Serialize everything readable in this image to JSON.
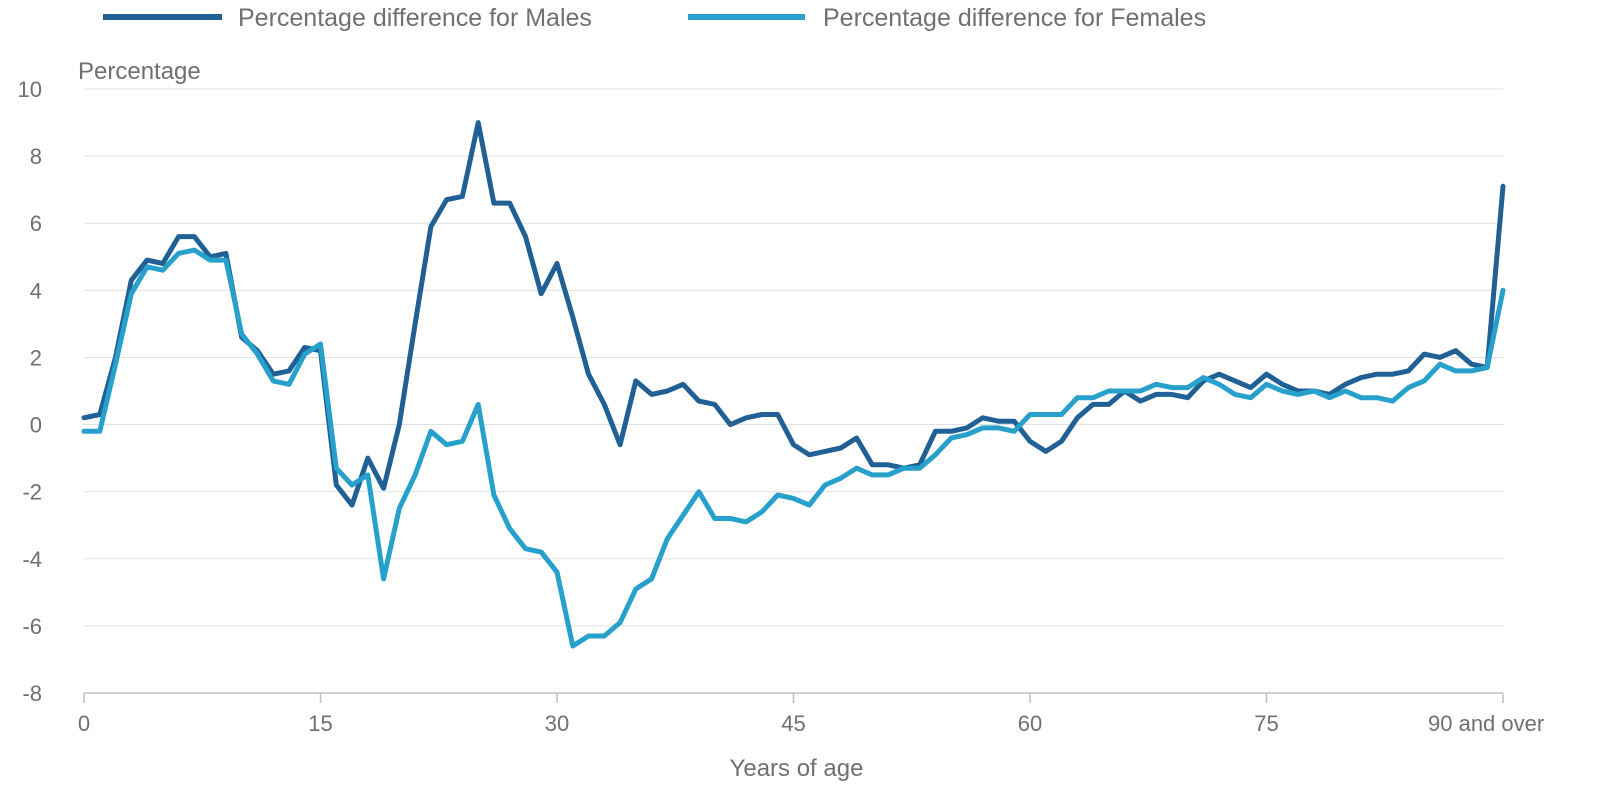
{
  "chart_data": {
    "type": "line",
    "title": "",
    "xlabel": "Years of age",
    "ylabel": "Percentage",
    "ylim": [
      -8,
      10
    ],
    "yticks": [
      10,
      8,
      6,
      4,
      2,
      0,
      -2,
      -4,
      -6,
      -8
    ],
    "xlim": [
      0,
      90
    ],
    "xticks": [
      {
        "value": 0,
        "label": "0"
      },
      {
        "value": 15,
        "label": "15"
      },
      {
        "value": 30,
        "label": "30"
      },
      {
        "value": 45,
        "label": "45"
      },
      {
        "value": 60,
        "label": "60"
      },
      {
        "value": 75,
        "label": "75"
      },
      {
        "value": 90,
        "label": "90 and over"
      }
    ],
    "grid": true,
    "legend_position": "top-left",
    "x": [
      0,
      1,
      2,
      3,
      4,
      5,
      6,
      7,
      8,
      9,
      10,
      11,
      12,
      13,
      14,
      15,
      16,
      17,
      18,
      19,
      20,
      21,
      22,
      23,
      24,
      25,
      26,
      27,
      28,
      29,
      30,
      31,
      32,
      33,
      34,
      35,
      36,
      37,
      38,
      39,
      40,
      41,
      42,
      43,
      44,
      45,
      46,
      47,
      48,
      49,
      50,
      51,
      52,
      53,
      54,
      55,
      56,
      57,
      58,
      59,
      60,
      61,
      62,
      63,
      64,
      65,
      66,
      67,
      68,
      69,
      70,
      71,
      72,
      73,
      74,
      75,
      76,
      77,
      78,
      79,
      80,
      81,
      82,
      83,
      84,
      85,
      86,
      87,
      88,
      89,
      90
    ],
    "series": [
      {
        "name": "Percentage difference for Males",
        "color": "#206095",
        "values": [
          0.2,
          0.3,
          2.0,
          4.3,
          4.9,
          4.8,
          5.6,
          5.6,
          5.0,
          5.1,
          2.6,
          2.2,
          1.5,
          1.6,
          2.3,
          2.2,
          -1.8,
          -2.4,
          -1.0,
          -1.9,
          0.0,
          3.0,
          5.9,
          6.7,
          6.8,
          9.0,
          6.6,
          6.6,
          5.6,
          3.9,
          4.8,
          3.2,
          1.5,
          0.6,
          -0.6,
          1.3,
          0.9,
          1.0,
          1.2,
          0.7,
          0.6,
          0.0,
          0.2,
          0.3,
          0.3,
          -0.6,
          -0.9,
          -0.8,
          -0.7,
          -0.4,
          -1.2,
          -1.2,
          -1.3,
          -1.2,
          -0.2,
          -0.2,
          -0.1,
          0.2,
          0.1,
          0.1,
          -0.5,
          -0.8,
          -0.5,
          0.2,
          0.6,
          0.6,
          1.0,
          0.7,
          0.9,
          0.9,
          0.8,
          1.3,
          1.5,
          1.3,
          1.1,
          1.5,
          1.2,
          1.0,
          1.0,
          0.9,
          1.2,
          1.4,
          1.5,
          1.5,
          1.6,
          2.1,
          2.0,
          2.2,
          1.8,
          1.7,
          7.1
        ]
      },
      {
        "name": "Percentage difference for Females",
        "color": "#27A0CC",
        "values": [
          -0.2,
          -0.2,
          1.8,
          3.9,
          4.7,
          4.6,
          5.1,
          5.2,
          4.9,
          4.9,
          2.7,
          2.1,
          1.3,
          1.2,
          2.1,
          2.4,
          -1.3,
          -1.8,
          -1.5,
          -4.6,
          -2.5,
          -1.5,
          -0.2,
          -0.6,
          -0.5,
          0.6,
          -2.1,
          -3.1,
          -3.7,
          -3.8,
          -4.4,
          -6.6,
          -6.3,
          -6.3,
          -5.9,
          -4.9,
          -4.6,
          -3.4,
          -2.7,
          -2.0,
          -2.8,
          -2.8,
          -2.9,
          -2.6,
          -2.1,
          -2.2,
          -2.4,
          -1.8,
          -1.6,
          -1.3,
          -1.5,
          -1.5,
          -1.3,
          -1.3,
          -0.9,
          -0.4,
          -0.3,
          -0.1,
          -0.1,
          -0.2,
          0.3,
          0.3,
          0.3,
          0.8,
          0.8,
          1.0,
          1.0,
          1.0,
          1.2,
          1.1,
          1.1,
          1.4,
          1.2,
          0.9,
          0.8,
          1.2,
          1.0,
          0.9,
          1.0,
          0.8,
          1.0,
          0.8,
          0.8,
          0.7,
          1.1,
          1.3,
          1.8,
          1.6,
          1.6,
          1.7,
          4.0
        ]
      }
    ]
  }
}
